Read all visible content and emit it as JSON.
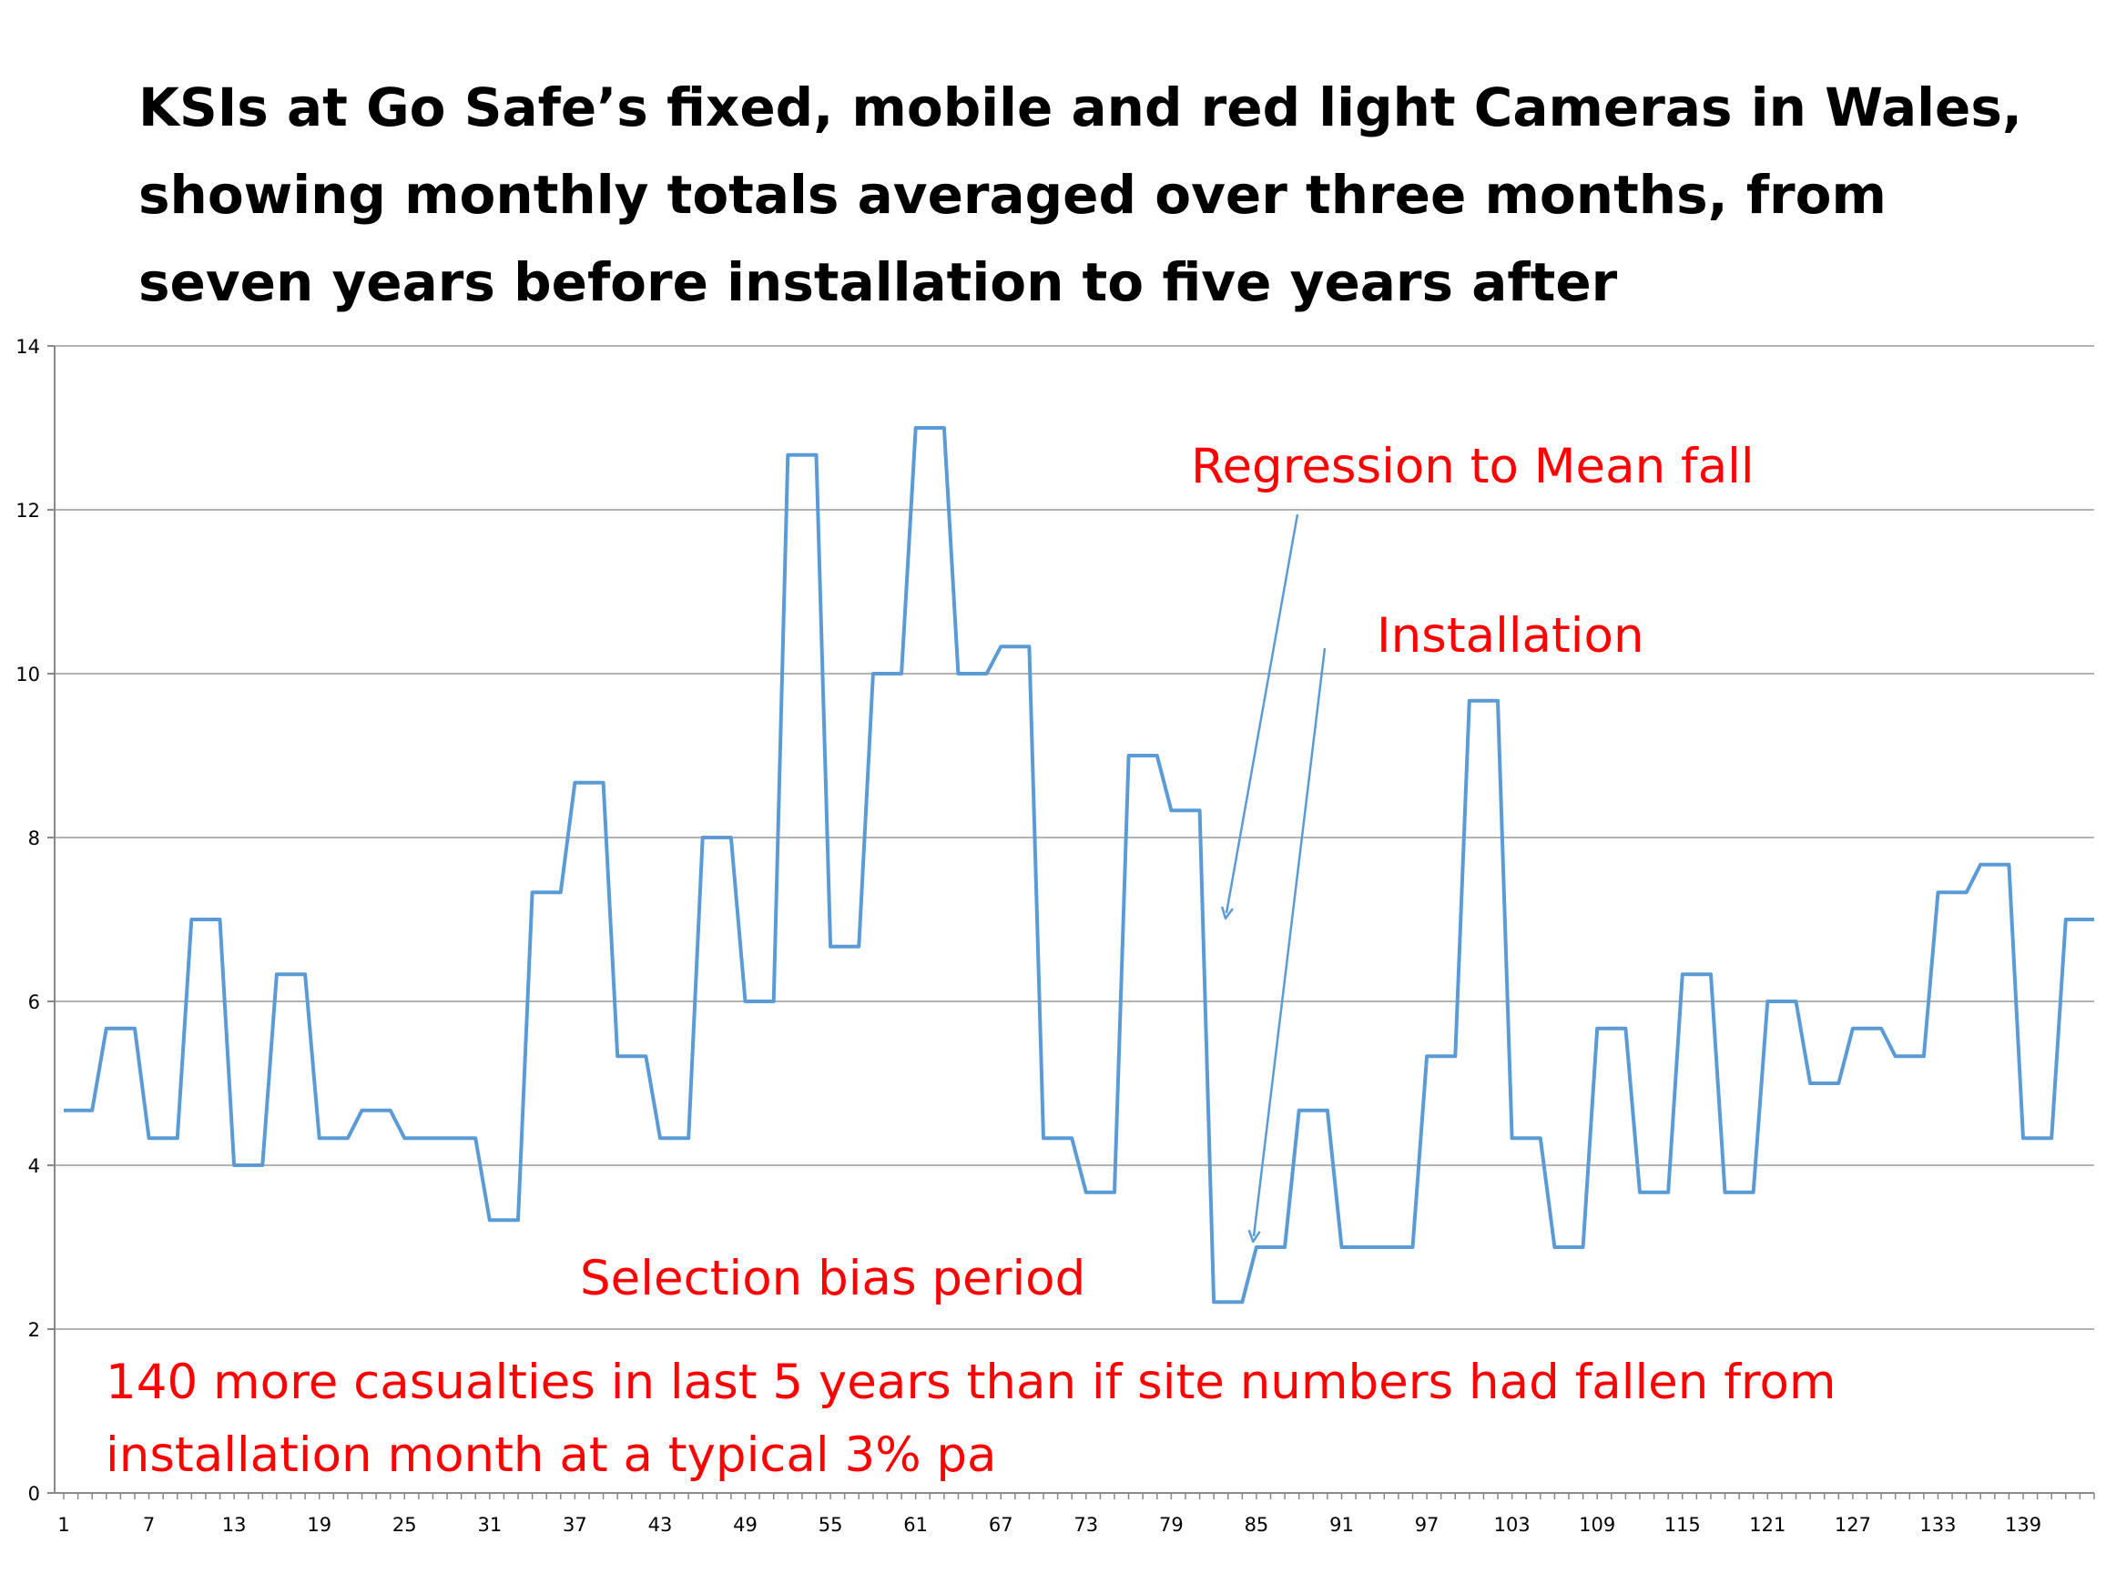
{
  "title_lines": [
    "KSIs at Go Safe’s fixed, mobile and red light Cameras in Wales,",
    "showing monthly totals averaged over three months, from",
    "seven years before installation to five years after"
  ],
  "annotations": {
    "regression": "Regression to Mean fall",
    "installation": "Installation",
    "selection": "Selection bias period",
    "note_line1": "140 more casualties in last 5 years than if site numbers had fallen from",
    "note_line2": "installation month at a typical 3% pa"
  },
  "colors": {
    "series": "#5b9bd5",
    "annotation": "#ff0000",
    "grid": "#b3b3b3"
  },
  "chart_data": {
    "type": "line",
    "title": "KSIs at Go Safe’s fixed, mobile and red light Cameras in Wales, showing monthly totals averaged over three months, from seven years before installation to five years after",
    "xlabel": "",
    "ylabel": "",
    "xlim": [
      1,
      144
    ],
    "ylim": [
      0,
      14
    ],
    "yticks": [
      0,
      2,
      4,
      6,
      8,
      10,
      12,
      14
    ],
    "xticks": [
      1,
      7,
      13,
      19,
      25,
      31,
      37,
      43,
      49,
      55,
      61,
      67,
      73,
      79,
      85,
      91,
      97,
      103,
      109,
      115,
      121,
      127,
      133,
      139
    ],
    "grid": true,
    "legend": "none",
    "series": [
      {
        "points": [
          [
            1,
            4.67
          ],
          [
            3,
            4.67
          ],
          [
            4,
            5.67
          ],
          [
            6,
            5.67
          ],
          [
            7,
            4.33
          ],
          [
            9,
            4.33
          ],
          [
            10,
            7
          ],
          [
            12,
            7
          ],
          [
            13,
            4
          ],
          [
            15,
            4
          ],
          [
            16,
            6.33
          ],
          [
            18,
            6.33
          ],
          [
            19,
            4.33
          ],
          [
            21,
            4.33
          ],
          [
            22,
            4.67
          ],
          [
            24,
            4.67
          ],
          [
            25,
            4.33
          ],
          [
            30,
            4.33
          ],
          [
            31,
            3.33
          ],
          [
            33,
            3.33
          ],
          [
            34,
            7.33
          ],
          [
            36,
            7.33
          ],
          [
            37,
            8.67
          ],
          [
            39,
            8.67
          ],
          [
            40,
            5.33
          ],
          [
            42,
            5.33
          ],
          [
            43,
            4.33
          ],
          [
            45,
            4.33
          ],
          [
            46,
            8
          ],
          [
            48,
            8
          ],
          [
            49,
            6
          ],
          [
            51,
            6
          ],
          [
            52,
            12.67
          ],
          [
            54,
            12.67
          ],
          [
            55,
            6.67
          ],
          [
            57,
            6.67
          ],
          [
            58,
            10
          ],
          [
            60,
            10
          ],
          [
            61,
            13
          ],
          [
            63,
            13
          ],
          [
            64,
            10
          ],
          [
            66,
            10
          ],
          [
            67,
            10.33
          ],
          [
            69,
            10.33
          ],
          [
            70,
            4.33
          ],
          [
            72,
            4.33
          ],
          [
            73,
            3.67
          ],
          [
            75,
            3.67
          ],
          [
            76,
            9
          ],
          [
            78,
            9
          ],
          [
            79,
            8.33
          ],
          [
            81,
            8.33
          ],
          [
            82,
            2.33
          ],
          [
            84,
            2.33
          ],
          [
            85,
            3
          ],
          [
            87,
            3
          ],
          [
            88,
            4.67
          ],
          [
            90,
            4.67
          ],
          [
            91,
            3
          ],
          [
            96,
            3
          ],
          [
            97,
            5.33
          ],
          [
            99,
            5.33
          ],
          [
            100,
            9.67
          ],
          [
            102,
            9.67
          ],
          [
            103,
            4.33
          ],
          [
            105,
            4.33
          ],
          [
            106,
            3
          ],
          [
            108,
            3
          ],
          [
            109,
            5.67
          ],
          [
            111,
            5.67
          ],
          [
            112,
            3.67
          ],
          [
            114,
            3.67
          ],
          [
            115,
            6.33
          ],
          [
            117,
            6.33
          ],
          [
            118,
            3.67
          ],
          [
            120,
            3.67
          ],
          [
            121,
            6
          ],
          [
            123,
            6
          ],
          [
            124,
            5
          ],
          [
            126,
            5
          ],
          [
            127,
            5.67
          ],
          [
            129,
            5.67
          ],
          [
            130,
            5.33
          ],
          [
            132,
            5.33
          ],
          [
            133,
            7.33
          ],
          [
            135,
            7.33
          ],
          [
            136,
            7.67
          ],
          [
            138,
            7.67
          ],
          [
            139,
            4.33
          ],
          [
            141,
            4.33
          ],
          [
            142,
            7
          ],
          [
            144,
            7
          ]
        ]
      }
    ]
  }
}
